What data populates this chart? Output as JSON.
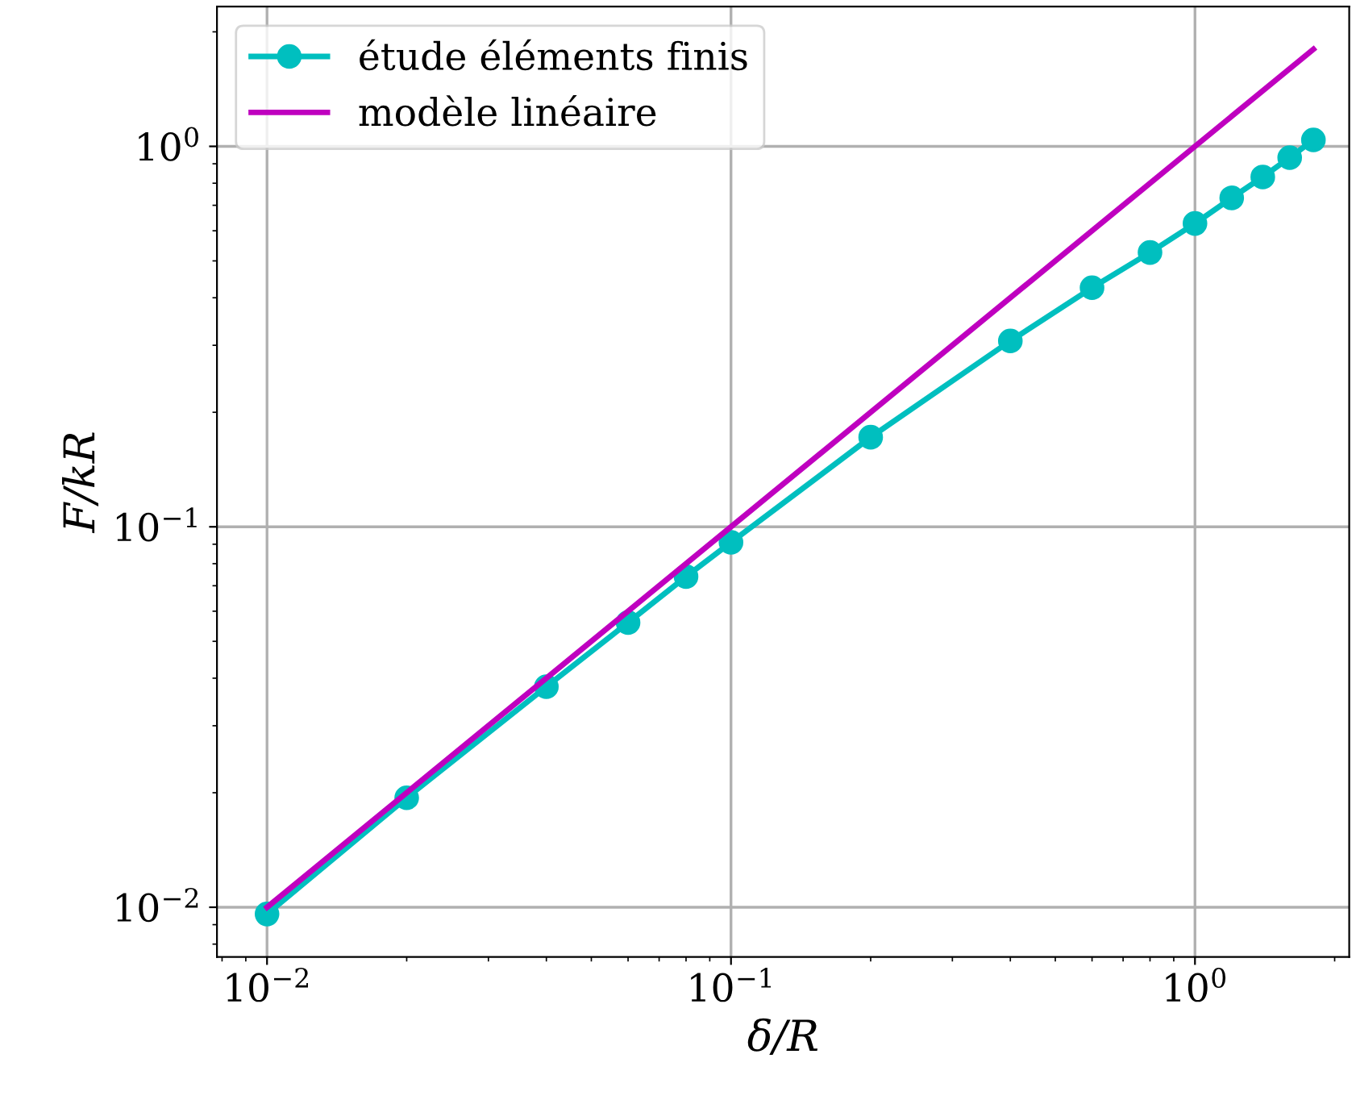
{
  "chart_data": {
    "type": "line",
    "xlabel": "δ/R",
    "ylabel": "F/kR",
    "log": "xy",
    "grid": true,
    "legend": "top left",
    "xlim": [
      0.0078,
      2.15
    ],
    "ylim": [
      0.0074,
      2.33
    ],
    "xticks": [
      {
        "value": 0.01,
        "label": "10$^{−2}$"
      },
      {
        "value": 0.1,
        "label": "10$^{−1}$"
      },
      {
        "value": 1,
        "label": "10$^{0}$"
      }
    ],
    "yticks": [
      {
        "value": 0.01,
        "label": "10$^{−2}$"
      },
      {
        "value": 0.1,
        "label": "10$^{−1}$"
      },
      {
        "value": 1,
        "label": "10$^{0}$"
      }
    ],
    "series": [
      {
        "name": "étude éléments finis",
        "color": "#00bfbf",
        "marker": "circle",
        "x": [
          0.01,
          0.02,
          0.04,
          0.06,
          0.08,
          0.1,
          0.2,
          0.4,
          0.6,
          0.8,
          1.0,
          1.2,
          1.4,
          1.6,
          1.8
        ],
        "values": [
          0.0096,
          0.0194,
          0.038,
          0.056,
          0.074,
          0.091,
          0.172,
          0.308,
          0.425,
          0.526,
          0.627,
          0.732,
          0.831,
          0.934,
          1.04
        ]
      },
      {
        "name": "modèle linéaire",
        "color": "#bf00bf",
        "marker": "none",
        "x": [
          0.01,
          1.8
        ],
        "values": [
          0.01,
          1.8
        ]
      }
    ]
  }
}
